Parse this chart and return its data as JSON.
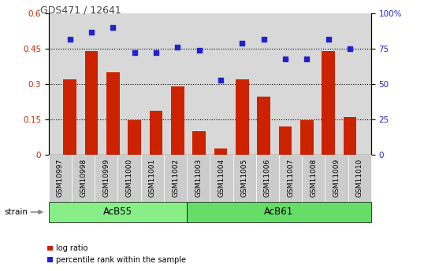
{
  "title": "GDS471 / 12641",
  "samples": [
    "GSM10997",
    "GSM10998",
    "GSM10999",
    "GSM11000",
    "GSM11001",
    "GSM11002",
    "GSM11003",
    "GSM11004",
    "GSM11005",
    "GSM11006",
    "GSM11007",
    "GSM11008",
    "GSM11009",
    "GSM11010"
  ],
  "log_ratio": [
    0.32,
    0.44,
    0.35,
    0.145,
    0.185,
    0.29,
    0.1,
    0.025,
    0.32,
    0.245,
    0.12,
    0.145,
    0.44,
    0.16
  ],
  "percentile": [
    82,
    87,
    90,
    72,
    72,
    76,
    74,
    53,
    79,
    82,
    68,
    68,
    82,
    75
  ],
  "groups": [
    {
      "label": "AcB55",
      "start": 0,
      "end": 6,
      "color": "#88ee88"
    },
    {
      "label": "AcB61",
      "start": 6,
      "end": 14,
      "color": "#66dd66"
    }
  ],
  "bar_color": "#cc2200",
  "scatter_color": "#2222cc",
  "ylim_left": [
    0,
    0.6
  ],
  "ylim_right": [
    0,
    100
  ],
  "yticks_left": [
    0,
    0.15,
    0.3,
    0.45,
    0.6
  ],
  "yticks_right": [
    0,
    25,
    50,
    75,
    100
  ],
  "ytick_labels_left": [
    "0",
    "0.15",
    "0.3",
    "0.45",
    "0.6"
  ],
  "ytick_labels_right": [
    "0",
    "25",
    "50",
    "75",
    "100%"
  ],
  "hlines": [
    0.15,
    0.3,
    0.45
  ],
  "background_color": "#d8d8d8",
  "xtick_bg": "#c8c8c8",
  "title_color": "#444444"
}
